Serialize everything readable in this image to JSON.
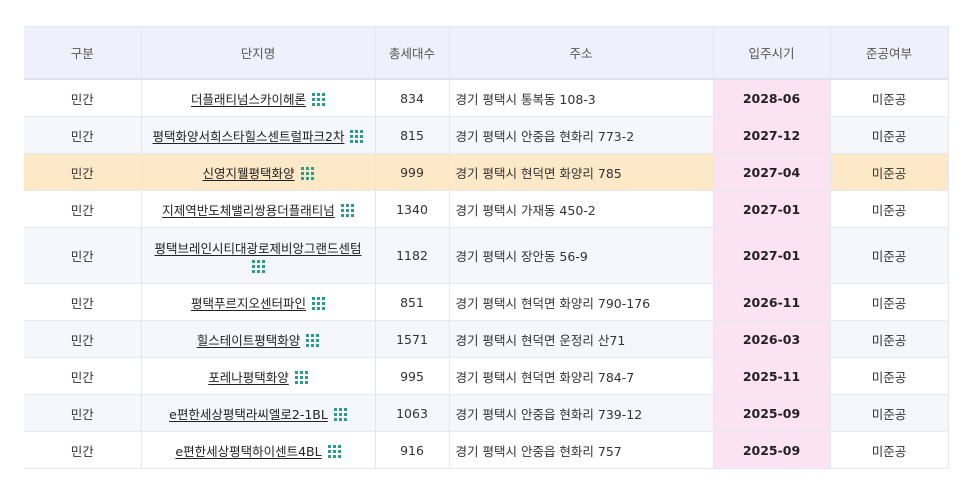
{
  "colors": {
    "header_bg": "#eef1fb",
    "highlight_row": "#fde8c8",
    "date_cell": "#fbe3f4",
    "icon": "#2a9d8f"
  },
  "headers": [
    "구분",
    "단지명",
    "총세대수",
    "주소",
    "입주시기",
    "준공여부"
  ],
  "rows": [
    {
      "type": "민간",
      "name": "더플래티넘스카이헤론",
      "units": "834",
      "address": "경기 평택시 통복동 108-3",
      "date": "2028-06",
      "status": "미준공",
      "icon": "grid-icon"
    },
    {
      "type": "민간",
      "name": "평택화양서희스타힐스센트럴파크2차",
      "units": "815",
      "address": "경기 평택시 안중읍 현화리 773-2",
      "date": "2027-12",
      "status": "미준공",
      "icon": "grid-icon"
    },
    {
      "type": "민간",
      "name": "신영지웰평택화양",
      "units": "999",
      "address": "경기 평택시 현덕면 화양리 785",
      "date": "2027-04",
      "status": "미준공",
      "icon": "grid-icon"
    },
    {
      "type": "민간",
      "name": "지제역반도체밸리쌍용더플래티넘",
      "units": "1340",
      "address": "경기 평택시 가재동 450-2",
      "date": "2027-01",
      "status": "미준공",
      "icon": "grid-icon"
    },
    {
      "type": "민간",
      "name": "평택브레인시티대광로제비앙그랜드센텀",
      "units": "1182",
      "address": "경기 평택시 장안동 56-9",
      "date": "2027-01",
      "status": "미준공",
      "icon": "grid-icon"
    },
    {
      "type": "민간",
      "name": "평택푸르지오센터파인",
      "units": "851",
      "address": "경기 평택시 현덕면 화양리 790-176",
      "date": "2026-11",
      "status": "미준공",
      "icon": "grid-icon"
    },
    {
      "type": "민간",
      "name": "힐스테이트평택화양",
      "units": "1571",
      "address": "경기 평택시 현덕면 운정리 산71",
      "date": "2026-03",
      "status": "미준공",
      "icon": "grid-icon"
    },
    {
      "type": "민간",
      "name": "포레나평택화양",
      "units": "995",
      "address": "경기 평택시 현덕면 화양리 784-7",
      "date": "2025-11",
      "status": "미준공",
      "icon": "grid-icon"
    },
    {
      "type": "민간",
      "name": "e편한세상평택라씨엘로2-1BL",
      "units": "1063",
      "address": "경기 평택시 안중읍 현화리 739-12",
      "date": "2025-09",
      "status": "미준공",
      "icon": "grid-icon"
    },
    {
      "type": "민간",
      "name": "e편한세상평택하이센트4BL",
      "units": "916",
      "address": "경기 평택시 안중읍 현화리 757",
      "date": "2025-09",
      "status": "미준공",
      "icon": "grid-icon"
    }
  ]
}
